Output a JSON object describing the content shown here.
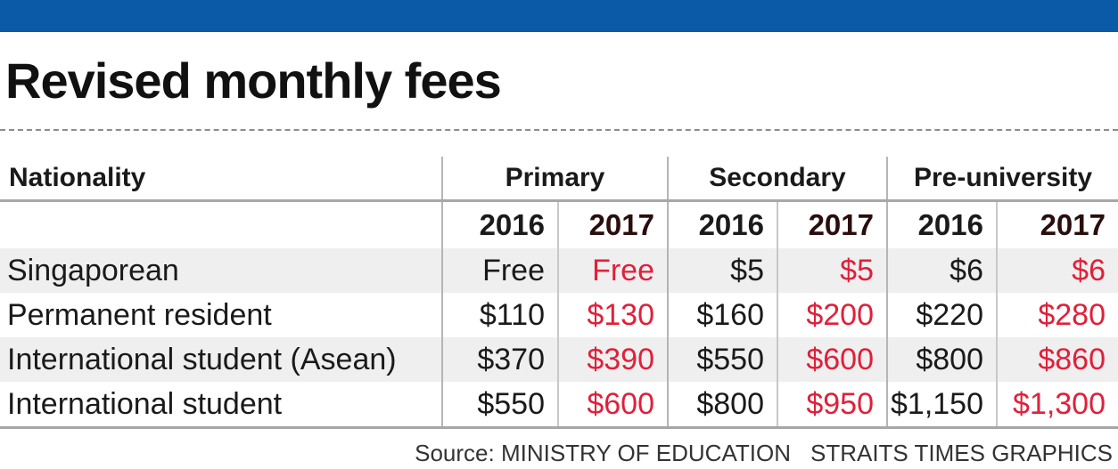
{
  "title": "Revised monthly fees",
  "colors": {
    "top_bar": "#0a5aa8",
    "year_2017_values": "#e0203a",
    "row_shade": "#efefef"
  },
  "chart_data": {
    "type": "table",
    "title": "Revised monthly fees",
    "header": {
      "nationality": "Nationality",
      "groups": [
        "Primary",
        "Secondary",
        "Pre-university"
      ]
    },
    "years": [
      "2016",
      "2017",
      "2016",
      "2017",
      "2016",
      "2017"
    ],
    "rows": [
      {
        "label": "Singaporean",
        "values": [
          "Free",
          "Free",
          "$5",
          "$5",
          "$6",
          "$6"
        ]
      },
      {
        "label": "Permanent resident",
        "values": [
          "$110",
          "$130",
          "$160",
          "$200",
          "$220",
          "$280"
        ]
      },
      {
        "label": "International student (Asean)",
        "values": [
          "$370",
          "$390",
          "$550",
          "$600",
          "$800",
          "$860"
        ]
      },
      {
        "label": "International student",
        "values": [
          "$550",
          "$600",
          "$800",
          "$950",
          "$1,150",
          "$1,300"
        ]
      }
    ]
  },
  "source": {
    "left": "Source: MINISTRY OF EDUCATION",
    "right": "STRAITS TIMES GRAPHICS"
  }
}
